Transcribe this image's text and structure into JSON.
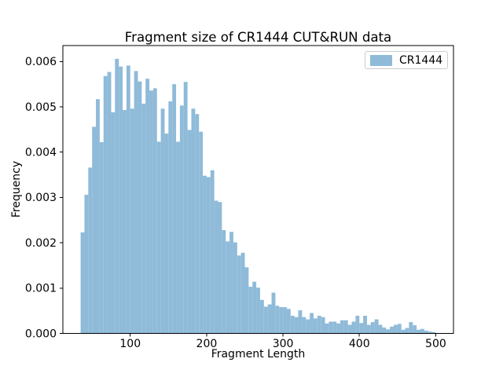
{
  "chart_data": {
    "type": "bar",
    "subtype": "histogram",
    "title": "Fragment size of CR1444 CUT&RUN data",
    "xlabel": "Fragment Length",
    "ylabel": "Frequency",
    "series_name": "CR1444",
    "bar_color": "#8fbbd9",
    "axis_color": "#000000",
    "legend_border_color": "#cccccc",
    "background_color": "#ffffff",
    "grid": false,
    "legend_position": "upper right",
    "bin_start": 35,
    "bin_width": 5,
    "xlim": [
      11.75,
      523.25
    ],
    "ylim": [
      0,
      0.0063525
    ],
    "x_ticks": [
      100,
      200,
      300,
      400,
      500
    ],
    "x_tick_labels": [
      "100",
      "200",
      "300",
      "400",
      "500"
    ],
    "y_ticks": [
      0.0,
      0.001,
      0.002,
      0.003,
      0.004,
      0.005,
      0.006
    ],
    "y_tick_labels": [
      "0.000",
      "0.001",
      "0.002",
      "0.003",
      "0.004",
      "0.005",
      "0.006"
    ],
    "bins": [
      0.00223,
      0.00306,
      0.00366,
      0.00456,
      0.00517,
      0.00422,
      0.00568,
      0.00577,
      0.00488,
      0.00606,
      0.00589,
      0.00493,
      0.00591,
      0.00496,
      0.00579,
      0.00556,
      0.00507,
      0.00562,
      0.00536,
      0.00541,
      0.00423,
      0.00496,
      0.00441,
      0.00512,
      0.0055,
      0.00423,
      0.00503,
      0.00555,
      0.00449,
      0.00496,
      0.00484,
      0.00445,
      0.00348,
      0.00345,
      0.0036,
      0.00293,
      0.0029,
      0.00228,
      0.00203,
      0.00224,
      0.00201,
      0.00172,
      0.00178,
      0.00146,
      0.00103,
      0.00114,
      0.00101,
      0.00074,
      0.00059,
      0.00064,
      0.0009,
      0.00061,
      0.00058,
      0.00058,
      0.00054,
      0.00039,
      0.00036,
      0.00051,
      0.00036,
      0.00031,
      0.00045,
      0.00033,
      0.00039,
      0.00036,
      0.00022,
      0.00026,
      0.00026,
      0.00022,
      0.00029,
      0.00029,
      0.00019,
      0.00026,
      0.00039,
      0.00023,
      0.00039,
      0.00019,
      0.00025,
      0.00031,
      0.00019,
      0.00013,
      9e-05,
      0.00015,
      0.00019,
      0.00021,
      8e-05,
      0.00012,
      0.00025,
      0.00018,
      8e-05,
      0.0001,
      6e-05,
      4e-05,
      3e-05
    ]
  }
}
